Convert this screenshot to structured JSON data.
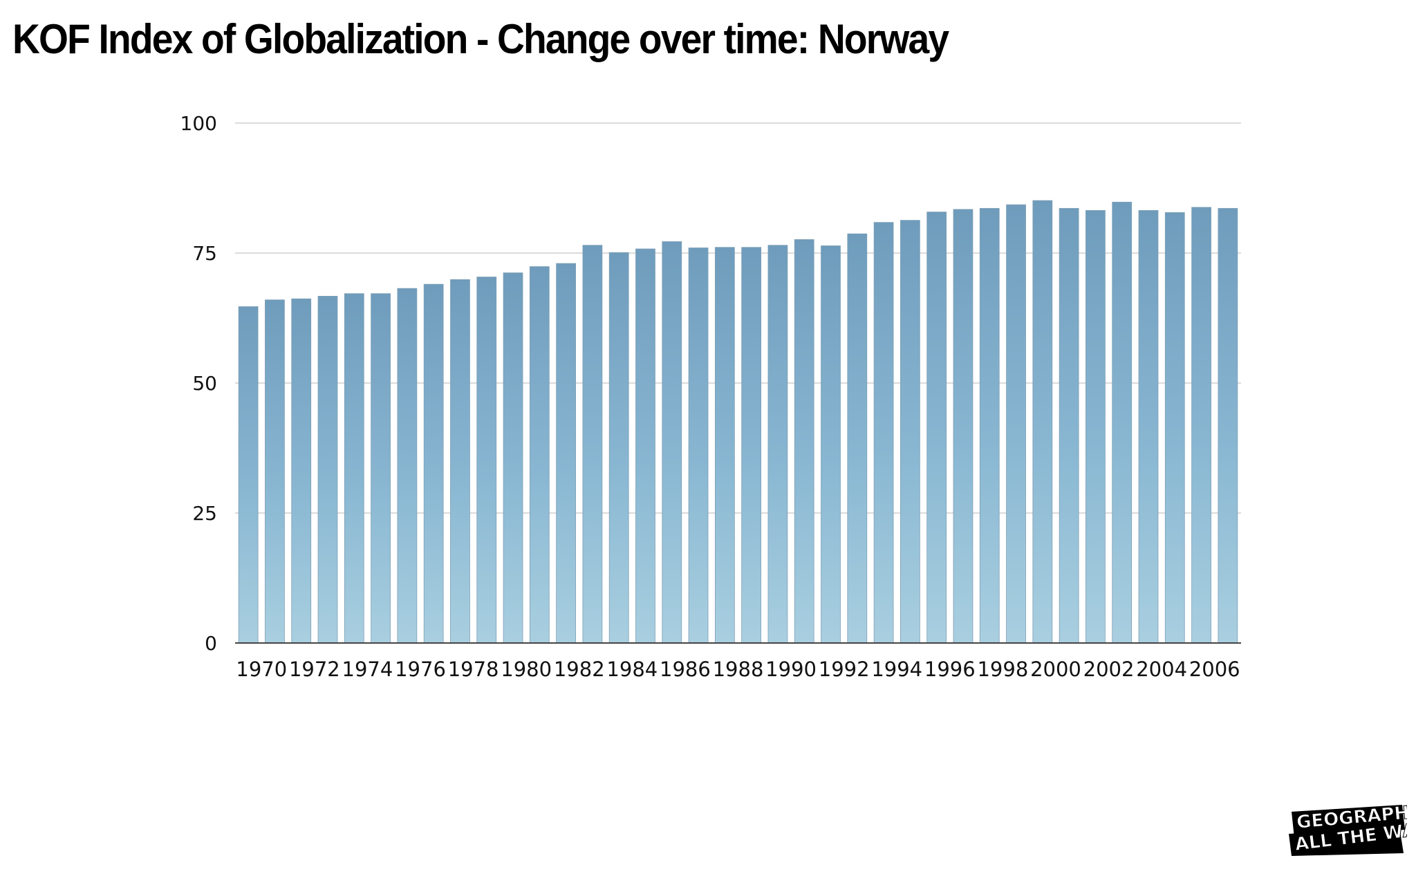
{
  "title": "KOF Index of Globalization - Change over time: Norway",
  "logo": {
    "line1": "GEOGRAPHY",
    "line2": "ALL THE WAY"
  },
  "colors": {
    "bar_top": "#6f9cbc",
    "bar_bottom": "#a9cfe0",
    "grid": "#cfcfcf",
    "axis": "#444444"
  },
  "chart_data": {
    "type": "bar",
    "title": "KOF Index of Globalization - Change over time: Norway",
    "xlabel": "",
    "ylabel": "",
    "ylim": [
      0,
      100
    ],
    "yticks": [
      0,
      25,
      50,
      75,
      100
    ],
    "grid": true,
    "categories": [
      "1970",
      "1971",
      "1972",
      "1973",
      "1974",
      "1975",
      "1976",
      "1977",
      "1978",
      "1979",
      "1980",
      "1981",
      "1982",
      "1983",
      "1984",
      "1985",
      "1986",
      "1987",
      "1988",
      "1989",
      "1990",
      "1991",
      "1992",
      "1993",
      "1994",
      "1995",
      "1996",
      "1997",
      "1998",
      "1999",
      "2000",
      "2001",
      "2002",
      "2003",
      "2004",
      "2005",
      "2006",
      "2007"
    ],
    "xtick_labels": [
      "1970",
      "1972",
      "1974",
      "1976",
      "1978",
      "1980",
      "1982",
      "1984",
      "1986",
      "1988",
      "1990",
      "1992",
      "1994",
      "1996",
      "1998",
      "2000",
      "2002",
      "2004",
      "2006"
    ],
    "values": [
      64.7,
      66.0,
      66.2,
      66.7,
      67.2,
      67.2,
      68.2,
      69.0,
      69.9,
      70.4,
      71.2,
      72.4,
      73.0,
      76.5,
      75.1,
      75.8,
      77.2,
      76.0,
      76.1,
      76.1,
      76.5,
      77.6,
      76.4,
      78.7,
      80.9,
      81.3,
      82.9,
      83.4,
      83.6,
      84.3,
      85.1,
      83.6,
      83.2,
      84.8,
      83.2,
      82.8,
      83.8,
      83.6
    ]
  }
}
